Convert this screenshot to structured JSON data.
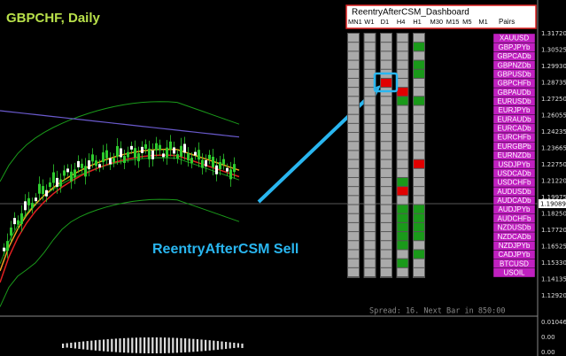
{
  "header": {
    "title": "GBPCHF, Daily"
  },
  "price_axis": {
    "labels": [
      "1.31720",
      "1.30525",
      "1.29930",
      "1.28735",
      "1.27250",
      "1.26055",
      "1.24235",
      "1.23665",
      "1.22750",
      "1.21220",
      "1.19975",
      "1.18250",
      "1.17720",
      "1.16525",
      "1.15330",
      "1.14135",
      "1.12920"
    ],
    "current": "1.19089"
  },
  "indicator_axis": {
    "labels": [
      "0.010463",
      "0.00",
      "0.00"
    ]
  },
  "annotation": "ReentryAfterCSM Sell",
  "dashboard": {
    "title": "ReentryAfterCSM_Dashboard",
    "timeframes": [
      "MN1",
      "W1",
      "D1",
      "H4",
      "H1",
      "M30",
      "M15",
      "M5",
      "M1"
    ],
    "pairs_header": "Pairs",
    "pairs": [
      "XAUUSD",
      "GBPJPYb",
      "GBPCADb",
      "GBPNZDb",
      "GBPUSDb",
      "GBPCHFb",
      "GBPAUDb",
      "EURUSDb",
      "EURJPYb",
      "EURAUDb",
      "EURCADb",
      "EURCHFb",
      "EURGBPb",
      "EURNZDb",
      "USDJPYb",
      "USDCADb",
      "USDCHFb",
      "AUDUSDb",
      "AUDCADb",
      "AUDJPYb",
      "AUDCHFb",
      "NZDUSDb",
      "NZDCADb",
      "NZDJPYb",
      "CADJPYb",
      "BTCUSD",
      "USOIL"
    ]
  },
  "status": "Spread: 16. Next Bar in 850:00"
}
